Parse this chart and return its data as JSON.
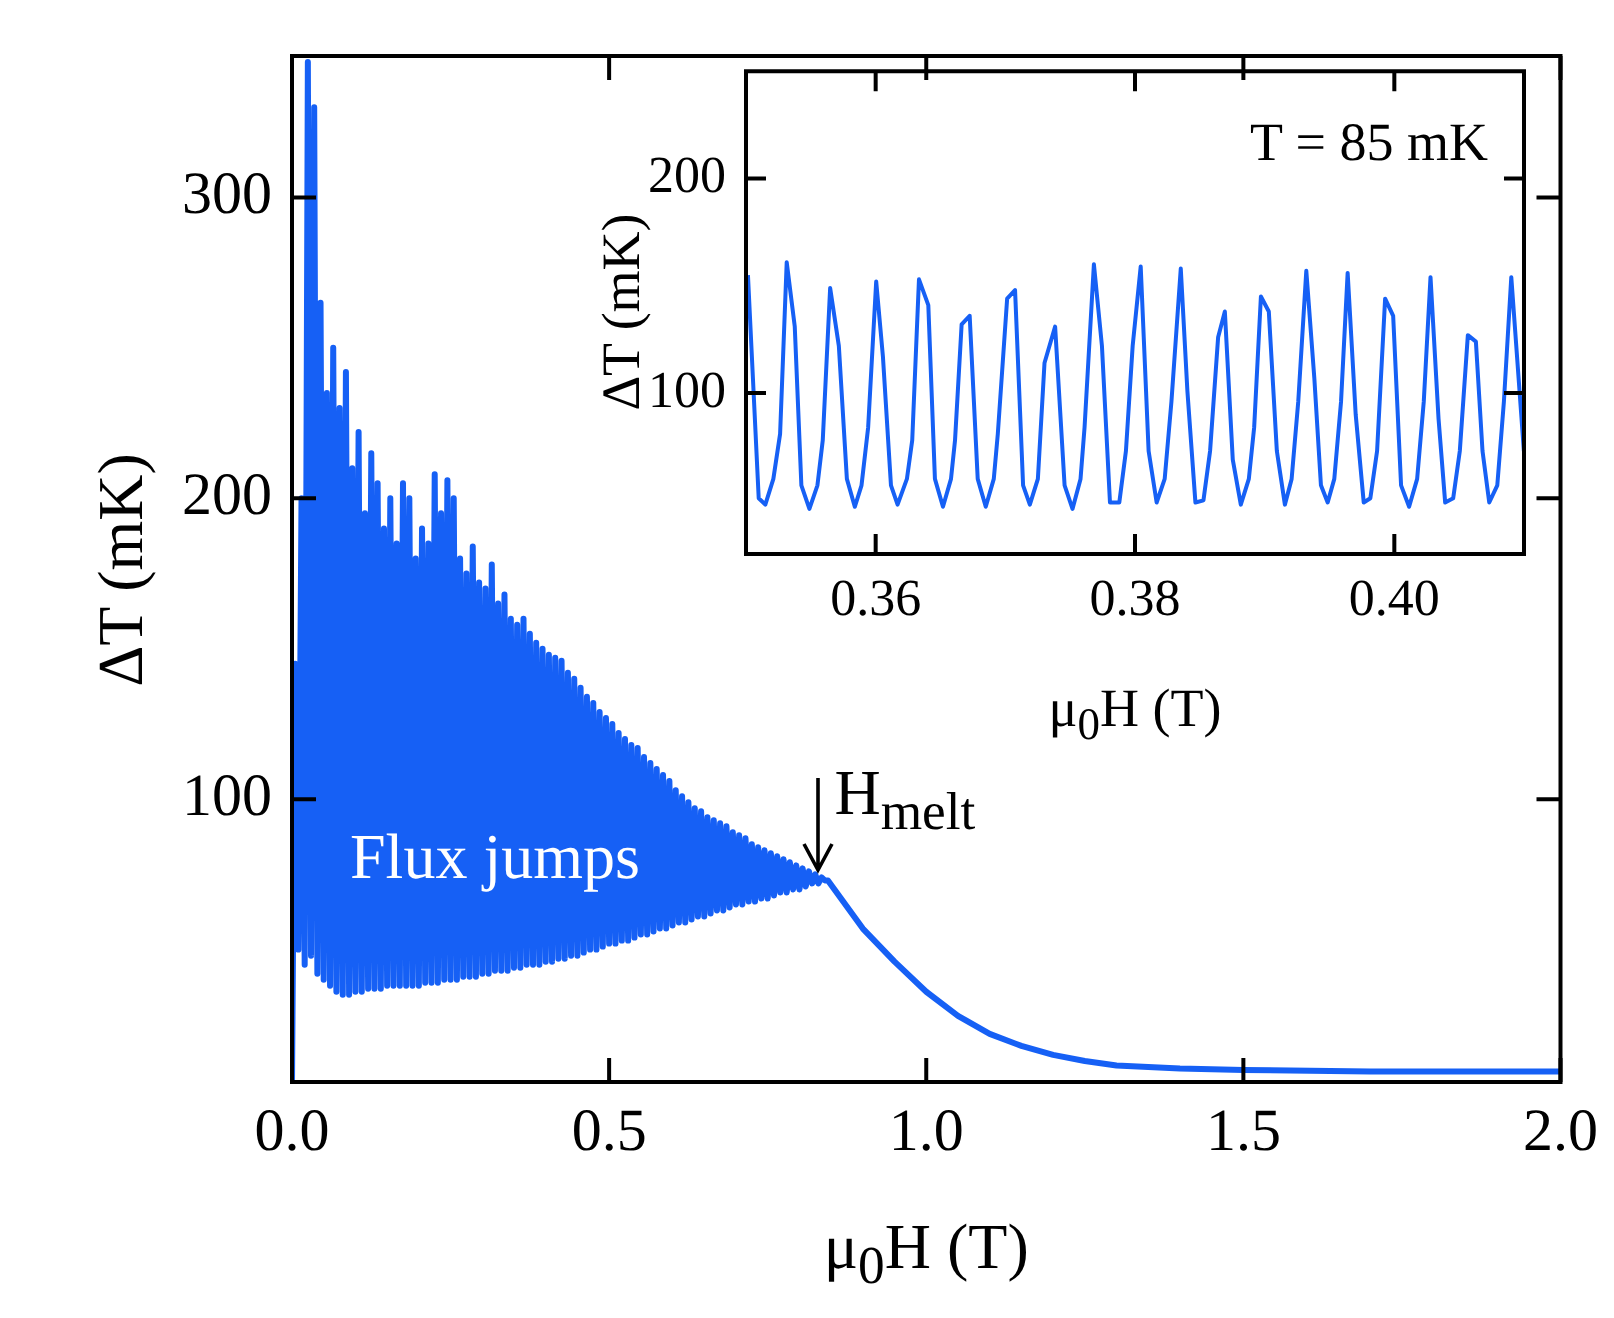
{
  "chart_data": [
    {
      "type": "line",
      "xlabel": "μ$_{0}$H (T)",
      "ylabel": "ΔT (mK)",
      "xlim": [
        0,
        2
      ],
      "ylim": [
        6,
        347
      ],
      "xticks": [
        {
          "value": 0,
          "label": "0.0"
        },
        {
          "value": 0.5,
          "label": "0.5"
        },
        {
          "value": 1,
          "label": "1.0"
        },
        {
          "value": 1.5,
          "label": "1.5"
        },
        {
          "value": 2,
          "label": "2.0"
        }
      ],
      "yticks": [
        100,
        200,
        300
      ],
      "annotations": [
        {
          "text": "Flux jumps",
          "x": 0.32,
          "y": 81
        },
        {
          "text": "H$_{melt}$",
          "x": 0.83,
          "y": 73
        }
      ],
      "series": [
        {
          "color": "#1660f5",
          "x": [
            0,
            0.005,
            0.01,
            0.015,
            0.02,
            0.025,
            0.03,
            0.035,
            0.04,
            0.045,
            0.05,
            0.055,
            0.06,
            0.065,
            0.07,
            0.075,
            0.08,
            0.085,
            0.09,
            0.095,
            0.1,
            0.105,
            0.11,
            0.115,
            0.12,
            0.125,
            0.13,
            0.135,
            0.14,
            0.145,
            0.15,
            0.155,
            0.16,
            0.165,
            0.17,
            0.175,
            0.18,
            0.185,
            0.19,
            0.195,
            0.2,
            0.205,
            0.21,
            0.215,
            0.22,
            0.225,
            0.23,
            0.235,
            0.24,
            0.245,
            0.25,
            0.255,
            0.26,
            0.265,
            0.27,
            0.275,
            0.28,
            0.285,
            0.29,
            0.295,
            0.3,
            0.305,
            0.31,
            0.315,
            0.32,
            0.325,
            0.33,
            0.335,
            0.34,
            0.345,
            0.35,
            0.355,
            0.36,
            0.365,
            0.37,
            0.375,
            0.38,
            0.385,
            0.39,
            0.395,
            0.4,
            0.405,
            0.41,
            0.415,
            0.42,
            0.425,
            0.43,
            0.435,
            0.44,
            0.445,
            0.45,
            0.455,
            0.46,
            0.465,
            0.47,
            0.475,
            0.48,
            0.485,
            0.49,
            0.495,
            0.5,
            0.505,
            0.51,
            0.515,
            0.52,
            0.525,
            0.53,
            0.535,
            0.54,
            0.545,
            0.55,
            0.555,
            0.56,
            0.565,
            0.57,
            0.575,
            0.58,
            0.585,
            0.59,
            0.595,
            0.6,
            0.605,
            0.61,
            0.615,
            0.62,
            0.625,
            0.63,
            0.635,
            0.64,
            0.645,
            0.65,
            0.655,
            0.66,
            0.665,
            0.67,
            0.675,
            0.68,
            0.685,
            0.69,
            0.695,
            0.7,
            0.705,
            0.71,
            0.715,
            0.72,
            0.725,
            0.73,
            0.735,
            0.74,
            0.745,
            0.75,
            0.755,
            0.76,
            0.765,
            0.77,
            0.775,
            0.78,
            0.785,
            0.79,
            0.795,
            0.8,
            0.805,
            0.81,
            0.815,
            0.82,
            0.825,
            0.83,
            0.835,
            0.84,
            0.845,
            0.9,
            0.95,
            1.0,
            1.05,
            1.1,
            1.15,
            1.2,
            1.25,
            1.3,
            1.4,
            1.5,
            1.7,
            2.0
          ],
          "values": [
            6,
            145,
            50,
            200,
            45,
            345,
            48,
            330,
            42,
            265,
            40,
            235,
            38,
            250,
            36,
            230,
            35,
            242,
            35,
            210,
            36,
            222,
            36,
            195,
            37,
            215,
            37,
            205,
            37,
            190,
            38,
            200,
            38,
            185,
            38,
            205,
            38,
            200,
            38,
            180,
            38,
            190,
            39,
            185,
            39,
            208,
            39,
            195,
            40,
            206,
            40,
            200,
            40,
            180,
            41,
            175,
            41,
            184,
            41,
            172,
            42,
            170,
            42,
            178,
            43,
            165,
            43,
            168,
            43,
            160,
            44,
            158,
            44,
            160,
            45,
            155,
            45,
            152,
            45,
            150,
            46,
            148,
            46,
            147,
            47,
            146,
            47,
            142,
            48,
            140,
            48,
            137,
            49,
            134,
            50,
            132,
            50,
            129,
            51,
            127,
            52,
            125,
            52,
            122,
            53,
            120,
            53,
            118,
            54,
            117,
            55,
            114,
            55,
            112,
            56,
            110,
            57,
            108,
            57,
            106,
            58,
            103,
            59,
            101,
            59,
            99,
            60,
            97,
            61,
            96,
            61,
            94,
            62,
            93,
            63,
            92,
            63,
            91,
            64,
            89,
            65,
            88,
            65,
            87,
            66,
            85,
            66,
            84,
            67,
            83,
            67,
            82,
            68,
            81,
            69,
            80,
            69,
            79,
            70,
            78,
            70,
            77,
            71,
            76,
            72,
            75,
            72,
            74,
            73,
            73,
            57,
            46,
            36,
            28,
            22,
            18,
            15,
            13,
            11.5,
            10.5,
            10,
            9.5,
            9.5
          ]
        }
      ]
    },
    {
      "type": "line",
      "xlabel": "μ$_{0}$H (T)",
      "ylabel": "ΔT (mK)",
      "xlim": [
        0.35,
        0.41
      ],
      "ylim": [
        25,
        250
      ],
      "xticks": [
        0.36,
        0.38,
        {
          "value": 0.4,
          "label": "0.40"
        }
      ],
      "yticks": [
        100,
        200
      ],
      "annotations": [
        "T = 85 mK"
      ],
      "series": [
        {
          "color": "#1660f5",
          "x": [
            0.35015,
            0.35098,
            0.35149,
            0.35211,
            0.35263,
            0.35314,
            0.35376,
            0.35427,
            0.35489,
            0.35551,
            0.35592,
            0.35649,
            0.35716,
            0.35778,
            0.35839,
            0.35891,
            0.35942,
            0.36004,
            0.36056,
            0.36118,
            0.36169,
            0.36241,
            0.36282,
            0.36334,
            0.36406,
            0.36457,
            0.36519,
            0.36581,
            0.36612,
            0.36663,
            0.36725,
            0.36787,
            0.36849,
            0.36911,
            0.36942,
            0.37014,
            0.37075,
            0.37137,
            0.37189,
            0.37251,
            0.37302,
            0.37384,
            0.37457,
            0.37518,
            0.3758,
            0.37611,
            0.37683,
            0.37745,
            0.37807,
            0.37879,
            0.3793,
            0.37982,
            0.38044,
            0.38105,
            0.38167,
            0.38229,
            0.38281,
            0.38353,
            0.38404,
            0.38466,
            0.38528,
            0.38579,
            0.38641,
            0.38693,
            0.38754,
            0.38816,
            0.38878,
            0.38919,
            0.38971,
            0.39032,
            0.39094,
            0.39156,
            0.39208,
            0.39259,
            0.39321,
            0.39383,
            0.39434,
            0.39486,
            0.39537,
            0.39589,
            0.3964,
            0.39702,
            0.39764,
            0.39815,
            0.39867,
            0.39929,
            0.39991,
            0.40052,
            0.40114,
            0.40176,
            0.40227,
            0.40279,
            0.40341,
            0.40392,
            0.40454,
            0.40505,
            0.40567,
            0.40629,
            0.4068,
            0.40732,
            0.40794,
            0.40845,
            0.40902,
            0.40999
          ],
          "values": [
            155,
            51,
            48,
            60,
            81,
            161,
            131,
            57,
            46,
            57,
            78,
            149,
            122,
            60,
            47,
            57,
            84,
            152,
            117,
            57,
            48,
            60,
            78,
            153,
            141,
            60,
            47,
            60,
            78,
            132,
            136,
            60,
            47,
            60,
            81,
            144,
            148,
            57,
            48,
            60,
            114,
            131,
            57,
            46,
            60,
            84,
            160,
            122,
            49,
            49,
            73,
            122,
            159,
            73,
            49,
            60,
            96,
            158,
            101,
            49,
            50,
            73,
            126,
            138,
            69,
            48,
            60,
            84,
            145,
            138,
            73,
            48,
            60,
            96,
            157,
            107,
            57,
            49,
            60,
            96,
            156,
            90,
            49,
            51,
            73,
            144,
            136,
            57,
            47,
            60,
            96,
            154,
            88,
            49,
            51,
            73,
            127,
            124,
            73,
            49,
            57,
            96,
            154,
            73
          ]
        }
      ]
    }
  ]
}
